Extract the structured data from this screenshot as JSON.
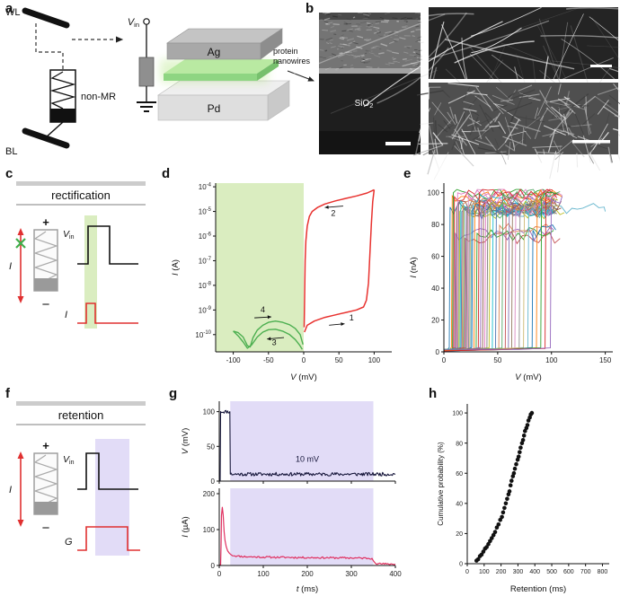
{
  "panels": {
    "a": {
      "label": "a",
      "wl": "WL",
      "bl": "BL",
      "non_mr": "non-MR",
      "vin_var": "V",
      "vin_sub": "in",
      "ag": "Ag",
      "pd": "Pd",
      "nanowires_line1": "protein",
      "nanowires_line2": "nanowires"
    },
    "b": {
      "label": "b",
      "sio2_base": "SiO",
      "sio2_sub": "2"
    },
    "c": {
      "label": "c",
      "title": "rectification",
      "plus": "+",
      "minus": "−",
      "current_label": "I",
      "vin_var": "V",
      "vin_sub": "in",
      "out_label": "I"
    },
    "d": {
      "label": "d"
    },
    "e": {
      "label": "e"
    },
    "f": {
      "label": "f",
      "title": "retention",
      "plus": "+",
      "minus": "−",
      "current_label": "I",
      "vin_var": "V",
      "vin_sub": "in",
      "out_label": "G"
    },
    "g": {
      "label": "g"
    },
    "h": {
      "label": "h"
    }
  },
  "colors": {
    "set_curve": "#e8322f",
    "neg_curve": "#4caf50",
    "voltage_trace": "#16163a",
    "current_trace": "#e03060",
    "green_band": "rgba(173,214,115,0.45)",
    "purple_band": "rgba(150,130,225,0.28)",
    "arrow_red": "#e03030",
    "cross_green": "#3fae4a"
  },
  "chart_data": [
    {
      "id": "d",
      "type": "line",
      "title": "",
      "xlabel_var": "V",
      "xlabel_unit": " (mV)",
      "ylabel_var": "I",
      "ylabel_unit": " (A)",
      "xlim": [
        -125,
        125
      ],
      "x_ticks": [
        -100,
        -50,
        0,
        50,
        100
      ],
      "ylim": [
        -10.7,
        -3.85
      ],
      "y_scale": "log10_exponent",
      "y_ticks": [
        {
          "v": -4,
          "label": "10^-4"
        },
        {
          "v": -5,
          "label": "10^-5"
        },
        {
          "v": -6,
          "label": "10^-6"
        },
        {
          "v": -7,
          "label": "10^-7"
        },
        {
          "v": -8,
          "label": "10^-8"
        },
        {
          "v": -9,
          "label": "10^-9"
        },
        {
          "v": -10,
          "label": "10^-10"
        }
      ],
      "regions": [
        {
          "x1": -125,
          "x2": 0,
          "color": "rgba(173,214,115,0.45)"
        }
      ],
      "series": [
        {
          "name": "set-sweep-1",
          "color": "#e8322f",
          "width": 1.5,
          "points": [
            [
              1,
              -9.9
            ],
            [
              5,
              -9.62
            ],
            [
              15,
              -9.45
            ],
            [
              30,
              -9.3
            ],
            [
              45,
              -9.2
            ],
            [
              60,
              -9.1
            ],
            [
              75,
              -9.0
            ],
            [
              85,
              -8.88
            ],
            [
              89,
              -8.6
            ],
            [
              92,
              -7.9
            ],
            [
              94,
              -6.7
            ],
            [
              96,
              -5.5
            ],
            [
              98,
              -4.6
            ],
            [
              100,
              -4.12
            ]
          ]
        },
        {
          "name": "return-sweep-2",
          "color": "#e8322f",
          "width": 1.5,
          "points": [
            [
              100,
              -4.12
            ],
            [
              90,
              -4.25
            ],
            [
              75,
              -4.37
            ],
            [
              60,
              -4.47
            ],
            [
              45,
              -4.57
            ],
            [
              30,
              -4.7
            ],
            [
              20,
              -4.83
            ],
            [
              12,
              -5.0
            ],
            [
              8,
              -5.2
            ],
            [
              5,
              -5.6
            ],
            [
              3,
              -6.2
            ],
            [
              2,
              -7.0
            ],
            [
              1.5,
              -8.0
            ],
            [
              1,
              -9.0
            ],
            [
              0.7,
              -9.7
            ]
          ]
        },
        {
          "name": "neg-sweep-3",
          "color": "#4caf50",
          "width": 1.4,
          "points": [
            [
              -1,
              -10.4
            ],
            [
              -5,
              -10.0
            ],
            [
              -12,
              -9.75
            ],
            [
              -20,
              -9.6
            ],
            [
              -30,
              -9.5
            ],
            [
              -40,
              -9.45
            ],
            [
              -50,
              -9.5
            ],
            [
              -58,
              -9.62
            ],
            [
              -66,
              -9.82
            ],
            [
              -72,
              -10.12
            ],
            [
              -76,
              -10.5
            ],
            [
              -80,
              -10.45
            ],
            [
              -86,
              -10.1
            ],
            [
              -93,
              -9.92
            ],
            [
              -100,
              -9.86
            ]
          ]
        },
        {
          "name": "neg-sweep-4",
          "color": "#4caf50",
          "width": 1.4,
          "points": [
            [
              -100,
              -9.86
            ],
            [
              -93,
              -10.05
            ],
            [
              -86,
              -10.3
            ],
            [
              -80,
              -10.55
            ],
            [
              -74,
              -10.42
            ],
            [
              -66,
              -10.1
            ],
            [
              -58,
              -9.9
            ],
            [
              -50,
              -9.8
            ],
            [
              -40,
              -9.78
            ],
            [
              -30,
              -9.86
            ],
            [
              -20,
              -10.0
            ],
            [
              -12,
              -10.2
            ],
            [
              -6,
              -10.42
            ],
            [
              -2,
              -10.6
            ]
          ]
        }
      ],
      "annotations": [
        {
          "text": "1",
          "x": 68,
          "y": -9.42,
          "color": "#111"
        },
        {
          "text": "2",
          "x": 42,
          "y": -5.18,
          "color": "#111"
        },
        {
          "text": "3",
          "x": -42,
          "y": -10.42,
          "color": "#111"
        },
        {
          "text": "4",
          "x": -58,
          "y": -9.1,
          "color": "#111"
        }
      ],
      "arrows": [
        {
          "x1": 36,
          "y1": -9.62,
          "x2": 58,
          "y2": -9.56
        },
        {
          "x1": 56,
          "y1": -4.78,
          "x2": 30,
          "y2": -4.84
        },
        {
          "x1": -28,
          "y1": -10.12,
          "x2": -52,
          "y2": -10.18
        },
        {
          "x1": -70,
          "y1": -9.32,
          "x2": -46,
          "y2": -9.28
        }
      ],
      "layout": {
        "pos": [
          190,
          196,
          256,
          230
        ],
        "margins": {
          "l": 50,
          "t": 8,
          "r": 10,
          "b": 34
        },
        "tick_size": 8,
        "ylabel_x": 8
      }
    },
    {
      "id": "e",
      "type": "switch-traces",
      "xlabel_var": "V",
      "xlabel_unit": " (mV)",
      "ylabel_var": "I",
      "ylabel_unit": " (nA)",
      "xlim": [
        0,
        157
      ],
      "ylim": [
        0,
        106
      ],
      "x_ticks": [
        0,
        50,
        100,
        150
      ],
      "y_ticks": [
        0,
        20,
        40,
        60,
        80,
        100
      ],
      "compliance_nA": 100,
      "palette": [
        "#1f77b4",
        "#ff7f0e",
        "#2ca02c",
        "#d62728",
        "#9467bd",
        "#8c564b",
        "#e377c2",
        "#7f7f7f",
        "#bcbd22",
        "#17becf",
        "#4c72b0",
        "#dd8452",
        "#55a868",
        "#c44e52",
        "#8172b3",
        "#937860",
        "#da8bc3",
        "#8c8c8c",
        "#ccb974",
        "#64b5cd"
      ],
      "trace_format": [
        "threshold_mV",
        "end_mV",
        "palette_index"
      ],
      "traces": [
        [
          5,
          104,
          0
        ],
        [
          7,
          110,
          1
        ],
        [
          8,
          100,
          2
        ],
        [
          9,
          107,
          3
        ],
        [
          10,
          102,
          4
        ],
        [
          11,
          109,
          5
        ],
        [
          12,
          100,
          6
        ],
        [
          13,
          105,
          7
        ],
        [
          14,
          112,
          8
        ],
        [
          15,
          101,
          9
        ],
        [
          16,
          106,
          10
        ],
        [
          17,
          100,
          11
        ],
        [
          18,
          103,
          12
        ],
        [
          19,
          108,
          13
        ],
        [
          20,
          100,
          14
        ],
        [
          21,
          105,
          15
        ],
        [
          22,
          110,
          16
        ],
        [
          23,
          101,
          17
        ],
        [
          24,
          104,
          18
        ],
        [
          25,
          150,
          19
        ],
        [
          26,
          100,
          0
        ],
        [
          28,
          107,
          1
        ],
        [
          30,
          102,
          2
        ],
        [
          32,
          105,
          3
        ],
        [
          34,
          100,
          4
        ],
        [
          36,
          109,
          5
        ],
        [
          38,
          103,
          6
        ],
        [
          40,
          100,
          7
        ],
        [
          42,
          106,
          8
        ],
        [
          45,
          101,
          9
        ],
        [
          48,
          104,
          10
        ],
        [
          51,
          100,
          11
        ],
        [
          54,
          108,
          12
        ],
        [
          57,
          102,
          13
        ],
        [
          60,
          100,
          14
        ],
        [
          63,
          105,
          15
        ],
        [
          66,
          100,
          16
        ],
        [
          70,
          103,
          17
        ],
        [
          74,
          107,
          18
        ],
        [
          78,
          100,
          19
        ],
        [
          82,
          104,
          0
        ],
        [
          86,
          100,
          1
        ],
        [
          90,
          106,
          2
        ],
        [
          94,
          101,
          3
        ],
        [
          99,
          110,
          4
        ]
      ],
      "layout": {
        "pos": [
          452,
          196,
          238,
          230
        ],
        "margins": {
          "l": 42,
          "t": 8,
          "r": 8,
          "b": 34
        },
        "tick_size": 8
      }
    },
    {
      "id": "g1",
      "type": "line",
      "ylabel_var": "V",
      "ylabel_unit": " (mV)",
      "xlim": [
        0,
        400
      ],
      "ylim": [
        0,
        115
      ],
      "x_ticks": [
        0,
        100,
        200,
        300,
        400
      ],
      "hide_x_labels": true,
      "y_ticks": [
        0,
        50,
        100
      ],
      "regions": [
        {
          "x1": 25,
          "x2": 350,
          "color": "rgba(150,130,225,0.28)"
        }
      ],
      "series": [
        {
          "name": "voltage-pulse",
          "color": "#16163a",
          "width": 1.1,
          "noise_amp": 2.5,
          "noise_from": 4,
          "noise_step": 2,
          "points": [
            [
              0,
              1
            ],
            [
              2,
              1
            ],
            [
              3,
              100
            ],
            [
              24,
              100
            ],
            [
              25,
              10
            ],
            [
              400,
              10
            ]
          ]
        }
      ],
      "annotations": [
        {
          "text": "10 mV",
          "x": 200,
          "y": 28,
          "color": "#16163a",
          "size": 9
        }
      ],
      "layout": {
        "pos": [
          198,
          441,
          252,
          99
        ],
        "margins": {
          "l": 46,
          "t": 6,
          "r": 10,
          "b": 4
        },
        "tick_size": 8
      }
    },
    {
      "id": "g2",
      "type": "line",
      "xlabel_var": "t",
      "xlabel_unit": " (ms)",
      "ylabel_var": "I",
      "ylabel_unit": " (µA)",
      "xlim": [
        0,
        400
      ],
      "ylim": [
        0,
        215
      ],
      "x_ticks": [
        0,
        100,
        200,
        300,
        400
      ],
      "y_ticks": [
        0,
        100,
        200
      ],
      "regions": [
        {
          "x1": 25,
          "x2": 350,
          "color": "rgba(150,130,225,0.28)"
        }
      ],
      "series": [
        {
          "name": "current-response",
          "color": "#e03060",
          "width": 1.2,
          "noise_amp": 2.5,
          "noise_from": 30,
          "noise_step": 2.5,
          "points": [
            [
              0,
              1
            ],
            [
              3,
              2
            ],
            [
              4,
              55
            ],
            [
              5,
              140
            ],
            [
              7,
              162
            ],
            [
              9,
              140
            ],
            [
              11,
              95
            ],
            [
              13,
              70
            ],
            [
              16,
              52
            ],
            [
              19,
              41
            ],
            [
              23,
              34
            ],
            [
              28,
              29
            ],
            [
              40,
              26
            ],
            [
              70,
              24
            ],
            [
              120,
              23
            ],
            [
              200,
              22
            ],
            [
              300,
              21
            ],
            [
              347,
              20
            ],
            [
              350,
              13
            ],
            [
              354,
              7
            ],
            [
              360,
              5
            ],
            [
              380,
              4
            ],
            [
              400,
              4
            ]
          ]
        }
      ],
      "layout": {
        "pos": [
          198,
          540,
          252,
          122
        ],
        "margins": {
          "l": 46,
          "t": 4,
          "r": 10,
          "b": 32
        },
        "tick_size": 8
      }
    },
    {
      "id": "h",
      "type": "scatter",
      "xlabel": "Retention (ms)",
      "ylabel": "Cumulative probability (%)",
      "xlim": [
        0,
        840
      ],
      "ylim": [
        0,
        106
      ],
      "x_ticks": [
        0,
        100,
        200,
        300,
        400,
        500,
        600,
        700,
        800
      ],
      "y_ticks": [
        0,
        20,
        40,
        60,
        80,
        100
      ],
      "marker_color": "#111",
      "connector": "dotted",
      "points": [
        [
          55,
          2
        ],
        [
          65,
          3
        ],
        [
          75,
          5
        ],
        [
          85,
          6
        ],
        [
          95,
          8
        ],
        [
          105,
          10
        ],
        [
          115,
          11
        ],
        [
          125,
          13
        ],
        [
          135,
          15
        ],
        [
          145,
          17
        ],
        [
          155,
          19
        ],
        [
          165,
          21
        ],
        [
          175,
          24
        ],
        [
          185,
          26
        ],
        [
          195,
          29
        ],
        [
          205,
          31
        ],
        [
          212,
          34
        ],
        [
          220,
          37
        ],
        [
          228,
          40
        ],
        [
          236,
          43
        ],
        [
          244,
          46
        ],
        [
          250,
          48
        ],
        [
          256,
          52
        ],
        [
          262,
          55
        ],
        [
          270,
          58
        ],
        [
          276,
          60
        ],
        [
          282,
          63
        ],
        [
          290,
          66
        ],
        [
          298,
          69
        ],
        [
          304,
          71
        ],
        [
          310,
          74
        ],
        [
          316,
          77
        ],
        [
          324,
          80
        ],
        [
          330,
          82
        ],
        [
          336,
          85
        ],
        [
          342,
          88
        ],
        [
          350,
          90
        ],
        [
          356,
          92
        ],
        [
          362,
          95
        ],
        [
          370,
          97
        ],
        [
          376,
          99
        ],
        [
          382,
          100
        ]
      ],
      "layout": {
        "pos": [
          484,
          440,
          204,
          222
        ],
        "margins": {
          "l": 36,
          "t": 10,
          "r": 10,
          "b": 34
        },
        "tick_size": 7,
        "ylabel_size": 8,
        "ylabel_x": 9
      }
    }
  ]
}
